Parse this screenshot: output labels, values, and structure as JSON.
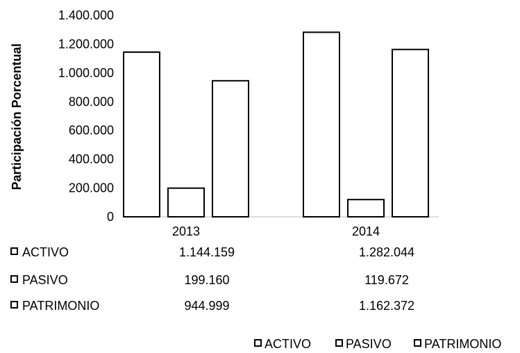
{
  "chart_data": {
    "type": "bar",
    "title": "",
    "xlabel": "",
    "ylabel": "Participación Porcentual",
    "ylim": [
      0,
      1400000
    ],
    "y_ticks": [
      "0",
      "200.000",
      "400.000",
      "600.000",
      "800.000",
      "1.000.000",
      "1.200.000",
      "1.400.000"
    ],
    "categories": [
      "2013",
      "2014"
    ],
    "series": [
      {
        "name": "ACTIVO",
        "values": [
          1144159,
          1282044
        ],
        "formatted": [
          "1.144.159",
          "1.282.044"
        ]
      },
      {
        "name": "PASIVO",
        "values": [
          199160,
          119672
        ],
        "formatted": [
          "199.160",
          "119.672"
        ]
      },
      {
        "name": "PATRIMONIO",
        "values": [
          944999,
          1162372
        ],
        "formatted": [
          "944.999",
          "1.162.372"
        ]
      }
    ],
    "grid": false,
    "legend_position": "bottom-right",
    "data_table": true,
    "colors": {
      "bar_fill": "#ffffff",
      "bar_stroke": "#000000",
      "text": "#000000"
    }
  }
}
